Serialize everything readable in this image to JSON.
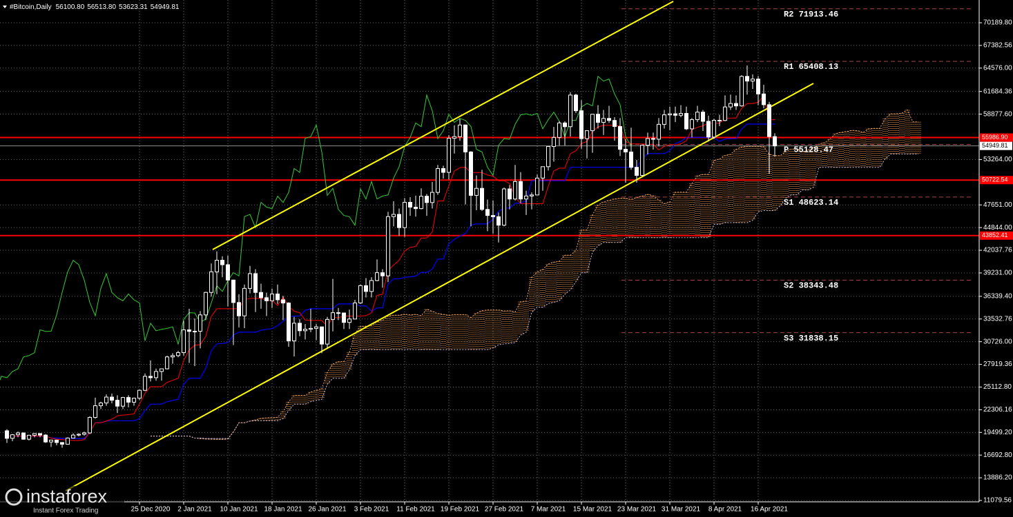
{
  "chart_data": {
    "type": "candlestick",
    "symbol": "#Bitcoin,Daily",
    "header_ohlc": [
      "56100.80",
      "56513.80",
      "53623.31",
      "54949.81"
    ],
    "categories": [
      null,
      null,
      null,
      null,
      null,
      null,
      null,
      null,
      null,
      null,
      null,
      null,
      null,
      null,
      null,
      null,
      null,
      null,
      null,
      null,
      null,
      null,
      null,
      null,
      "25 Dec 2020",
      null,
      null,
      null,
      null,
      null,
      null,
      null,
      "2 Jan 2021",
      null,
      null,
      null,
      null,
      null,
      null,
      null,
      "10 Jan 2021",
      null,
      null,
      null,
      null,
      null,
      null,
      null,
      "18 Jan 2021",
      null,
      null,
      null,
      null,
      null,
      null,
      null,
      "26 Jan 2021",
      null,
      null,
      null,
      null,
      null,
      null,
      null,
      "3 Feb 2021",
      null,
      null,
      null,
      null,
      null,
      null,
      null,
      "11 Feb 2021",
      null,
      null,
      null,
      null,
      null,
      null,
      null,
      "19 Feb 2021",
      null,
      null,
      null,
      null,
      null,
      null,
      null,
      "27 Feb 2021",
      null,
      null,
      null,
      null,
      null,
      null,
      null,
      "7 Mar 2021",
      null,
      null,
      null,
      null,
      null,
      null,
      null,
      "15 Mar 2021",
      null,
      null,
      null,
      null,
      null,
      null,
      null,
      "23 Mar 2021",
      null,
      null,
      null,
      null,
      null,
      null,
      null,
      "31 Mar 2021",
      null,
      null,
      null,
      null,
      null,
      null,
      null,
      "8 Apr 2021",
      null,
      null,
      null,
      null,
      null,
      null,
      null,
      "16 Apr 2021",
      null,
      null,
      null
    ],
    "open": [
      19700,
      18770,
      19210,
      19430,
      18660,
      19150,
      19360,
      19170,
      18320,
      18550,
      18250,
      18040,
      18800,
      19170,
      19270,
      19440,
      21350,
      22800,
      23140,
      23870,
      23480,
      22750,
      23820,
      23240,
      23730,
      24710,
      26440,
      26270,
      27040,
      27370,
      28840,
      29000,
      29370,
      32190,
      32000,
      32020,
      34040,
      36820,
      39370,
      40800,
      40250,
      38350,
      35570,
      33920,
      37320,
      39140,
      36820,
      36170,
      35790,
      36630,
      35910,
      35510,
      30830,
      33010,
      32080,
      32260,
      32370,
      32560,
      30430,
      33480,
      34310,
      34280,
      33110,
      33530,
      35520,
      37660,
      36940,
      38290,
      39260,
      38870,
      46200,
      46480,
      44840,
      47970,
      47370,
      47190,
      48720,
      47940,
      49200,
      52150,
      51680,
      55890,
      56100,
      57540,
      54200,
      48830,
      49700,
      47090,
      46340,
      46190,
      45140,
      49630,
      48380,
      50540,
      48380,
      48750,
      48880,
      50970,
      52380,
      54880,
      56000,
      57790,
      57330,
      61240,
      59300,
      55850,
      56830,
      58870,
      57860,
      58350,
      58100,
      57350,
      54530,
      54200,
      52300,
      51300,
      55030,
      55860,
      55780,
      57620,
      58790,
      58920,
      58740,
      58970,
      57060,
      58200,
      59130,
      57990,
      56050,
      58120,
      58100,
      59770,
      60200,
      59900,
      63550,
      62970,
      63220,
      61380,
      60050,
      56100.8
    ],
    "high": [
      19900,
      19300,
      19600,
      19500,
      19200,
      19400,
      19400,
      19300,
      18600,
      18600,
      18300,
      18900,
      19400,
      19400,
      19600,
      21500,
      23800,
      23300,
      24200,
      24300,
      24100,
      23900,
      24100,
      23800,
      24800,
      26800,
      28400,
      27400,
      27400,
      29000,
      29300,
      29600,
      33300,
      34800,
      33600,
      34500,
      36900,
      40400,
      41900,
      41300,
      41400,
      38400,
      36600,
      37800,
      40100,
      39700,
      37900,
      36800,
      37300,
      37800,
      36400,
      35600,
      33800,
      33500,
      32900,
      34800,
      32900,
      32600,
      33800,
      38500,
      34900,
      34300,
      34700,
      35900,
      37800,
      38600,
      38700,
      40900,
      39700,
      46800,
      48100,
      47200,
      48500,
      48600,
      48800,
      49700,
      49000,
      50500,
      52600,
      52500,
      56300,
      57500,
      58300,
      57600,
      54300,
      51300,
      52000,
      48300,
      48200,
      46700,
      49800,
      50100,
      52600,
      51700,
      49400,
      49200,
      51400,
      52400,
      54900,
      57300,
      58000,
      58000,
      61600,
      61400,
      60600,
      56900,
      58900,
      60000,
      59400,
      59900,
      58500,
      58400,
      55800,
      57200,
      53200,
      55100,
      56600,
      56600,
      58400,
      59400,
      59800,
      59800,
      60000,
      59800,
      58400,
      59900,
      59400,
      58700,
      58300,
      58800,
      61200,
      61300,
      61200,
      63700,
      64900,
      63800,
      63600,
      62500,
      60400,
      56513.8
    ],
    "low": [
      18200,
      18400,
      18900,
      18600,
      18500,
      18900,
      18900,
      18200,
      17700,
      17900,
      17600,
      18000,
      18800,
      19000,
      19100,
      19300,
      21200,
      22400,
      22800,
      23100,
      21900,
      22400,
      22600,
      22800,
      23500,
      24600,
      25800,
      25900,
      25900,
      27300,
      28000,
      28800,
      29000,
      28100,
      27700,
      29900,
      33400,
      36300,
      36600,
      38700,
      35100,
      30300,
      32500,
      32400,
      36700,
      34400,
      34800,
      33900,
      34900,
      35400,
      33400,
      30100,
      28900,
      31400,
      31000,
      31900,
      30900,
      29300,
      29900,
      32000,
      33400,
      32300,
      32300,
      33500,
      35400,
      36200,
      36200,
      38200,
      37400,
      38100,
      45000,
      43800,
      43700,
      46300,
      46200,
      47100,
      46300,
      47200,
      48900,
      50900,
      50800,
      54000,
      55600,
      47700,
      45000,
      47000,
      46900,
      44400,
      44100,
      43000,
      45000,
      47100,
      48200,
      47900,
      46400,
      47100,
      48900,
      49400,
      51900,
      53000,
      55000,
      55000,
      56100,
      59000,
      54600,
      53400,
      54100,
      57100,
      56300,
      57800,
      55600,
      53700,
      50400,
      52000,
      50400,
      51200,
      53900,
      54500,
      54900,
      57100,
      56900,
      57900,
      58500,
      56900,
      56000,
      57900,
      56800,
      55500,
      55800,
      57400,
      58000,
      59400,
      59400,
      59800,
      61300,
      62000,
      60000,
      59600,
      51500,
      53623.31
    ],
    "close": [
      18770,
      19210,
      19430,
      18660,
      19150,
      19360,
      19170,
      18320,
      18550,
      18250,
      18040,
      18800,
      19170,
      19270,
      19440,
      21350,
      22800,
      23140,
      23870,
      23480,
      22750,
      23820,
      23240,
      23730,
      24710,
      26440,
      26270,
      27040,
      27370,
      28840,
      29000,
      29370,
      32190,
      32000,
      32020,
      34040,
      36820,
      39370,
      40800,
      40250,
      38350,
      35570,
      33920,
      37320,
      39140,
      36820,
      36170,
      35790,
      36630,
      35910,
      35510,
      30830,
      33010,
      32080,
      32260,
      32370,
      32560,
      30430,
      33480,
      34310,
      34280,
      33110,
      33530,
      35520,
      37660,
      36940,
      38290,
      39260,
      38870,
      46200,
      46480,
      44840,
      47970,
      47370,
      47190,
      48720,
      47940,
      49200,
      52150,
      51680,
      55890,
      56100,
      57540,
      54200,
      48830,
      49700,
      47090,
      46340,
      46190,
      45140,
      49630,
      48380,
      50540,
      48380,
      48750,
      48880,
      50970,
      52380,
      54880,
      56000,
      57790,
      57330,
      61240,
      59300,
      55850,
      56830,
      58870,
      57860,
      58350,
      58100,
      57350,
      54530,
      54200,
      52300,
      51300,
      55030,
      55860,
      55780,
      57620,
      58790,
      58920,
      58740,
      58970,
      57060,
      58200,
      59130,
      57990,
      56050,
      58120,
      58100,
      59770,
      60200,
      59900,
      63550,
      62970,
      63220,
      61380,
      60050,
      56100,
      54949.81
    ],
    "ylim": [
      10909,
      73004
    ],
    "yticks": [
      {
        "value": 70189.8,
        "label": "70189.80"
      },
      {
        "value": 67382.56,
        "label": "67382.56"
      },
      {
        "value": 64576,
        "label": "64576.00"
      },
      {
        "value": 61684.36,
        "label": "61684.36"
      },
      {
        "value": 58877.6,
        "label": "58877.60"
      },
      {
        "value": 53264,
        "label": "53264.00"
      },
      {
        "value": 47651,
        "label": "47651.00"
      },
      {
        "value": 44844,
        "label": "44844.00"
      },
      {
        "value": 42037.76,
        "label": "42037.76"
      },
      {
        "value": 39231,
        "label": "39231.00"
      },
      {
        "value": 36339.4,
        "label": "36339.40"
      },
      {
        "value": 33532.76,
        "label": "33532.76"
      },
      {
        "value": 30726,
        "label": "30726.00"
      },
      {
        "value": 27919.36,
        "label": "27919.36"
      },
      {
        "value": 25112.8,
        "label": "25112.80"
      },
      {
        "value": 22306.16,
        "label": "22306.16"
      },
      {
        "value": 19499.2,
        "label": "19499.20"
      },
      {
        "value": 16692.8,
        "label": "16692.80"
      },
      {
        "value": 13886.2,
        "label": "13886.20"
      },
      {
        "value": 11079.56,
        "label": "11079.56"
      }
    ],
    "grid": true,
    "levels": [
      {
        "value": 55986.9,
        "label": "55986.90"
      },
      {
        "value": 50722.54,
        "label": "50722.54"
      },
      {
        "value": 43852.41,
        "label": "43852.41"
      }
    ],
    "level_color": "#ff0000",
    "last_price": {
      "value": 54949.81,
      "label": "54949.81"
    },
    "pivots": [
      {
        "value": 71913.46,
        "label": "R2 71913.46"
      },
      {
        "value": 65408.13,
        "label": "R1 65408.13"
      },
      {
        "value": 55128.47,
        "label": "P 55128.47"
      },
      {
        "value": 48623.14,
        "label": "S1 48623.14"
      },
      {
        "value": 38343.48,
        "label": "S2 38343.48"
      },
      {
        "value": 31838.15,
        "label": "S3 31838.15"
      }
    ],
    "pivot_color": "#a84848"
  },
  "watermark": {
    "brand": "instaforex",
    "tagline": "Instant Forex Trading"
  }
}
